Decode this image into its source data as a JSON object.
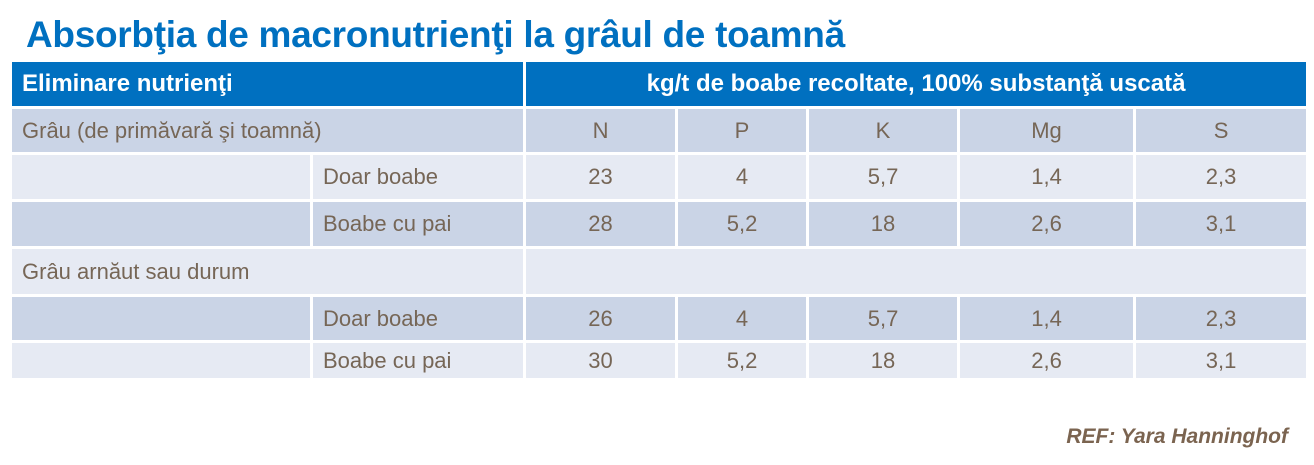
{
  "title": "Absorbţia de macronutrienţi la grâul de toamnă",
  "table": {
    "header_left": "Eliminare nutrienţi",
    "header_right": "kg/t de boabe recoltate, 100% substanţă uscată",
    "columns": [
      "N",
      "P",
      "K",
      "Mg",
      "S"
    ],
    "groups": [
      {
        "name": "Grâu (de primăvară şi toamnă)",
        "rows": [
          {
            "label": "Doar boabe",
            "values": [
              "23",
              "4",
              "5,7",
              "1,4",
              "2,3"
            ]
          },
          {
            "label": "Boabe cu pai",
            "values": [
              "28",
              "5,2",
              "18",
              "2,6",
              "3,1"
            ]
          }
        ]
      },
      {
        "name": "Grâu arnăut sau durum",
        "rows": [
          {
            "label": "Doar boabe",
            "values": [
              "26",
              "4",
              "5,7",
              "1,4",
              "2,3"
            ]
          },
          {
            "label": "Boabe cu pai",
            "values": [
              "30",
              "5,2",
              "18",
              "2,6",
              "3,1"
            ]
          }
        ]
      }
    ]
  },
  "reference": "REF: Yara Hanninghof"
}
